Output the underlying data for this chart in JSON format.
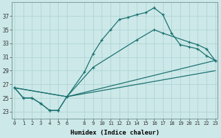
{
  "xlabel": "Humidex (Indice chaleur)",
  "bg_color": "#cce8e8",
  "grid_color": "#b0d4d4",
  "line_color": "#1a7070",
  "xlim": [
    -0.3,
    23.3
  ],
  "ylim": [
    22.0,
    39.0
  ],
  "xticks": [
    0,
    1,
    2,
    3,
    4,
    5,
    6,
    8,
    9,
    10,
    11,
    12,
    13,
    14,
    15,
    16,
    17,
    18,
    19,
    20,
    21,
    22,
    23
  ],
  "yticks": [
    23,
    25,
    27,
    29,
    31,
    33,
    35,
    37
  ],
  "line1_x": [
    0,
    1,
    2,
    3,
    4,
    5,
    6,
    8,
    9,
    10,
    11,
    12,
    13,
    14,
    15,
    16,
    17,
    18,
    19,
    20,
    21,
    22,
    23
  ],
  "line1_y": [
    26.5,
    25.0,
    25.0,
    24.2,
    23.2,
    23.2,
    25.2,
    28.8,
    31.5,
    33.5,
    35.0,
    36.5,
    36.8,
    37.2,
    37.5,
    38.2,
    37.2,
    34.5,
    32.8,
    32.5,
    32.2,
    31.2,
    30.5
  ],
  "line2_x": [
    0,
    1,
    2,
    3,
    4,
    5,
    6,
    9,
    14,
    16,
    17,
    20,
    21,
    22,
    23
  ],
  "line2_y": [
    26.5,
    25.0,
    25.0,
    24.2,
    23.2,
    23.2,
    25.2,
    29.5,
    33.5,
    35.0,
    34.5,
    33.2,
    32.8,
    32.2,
    30.5
  ],
  "line3_x": [
    0,
    6,
    23
  ],
  "line3_y": [
    26.5,
    25.2,
    30.5
  ],
  "line4_x": [
    0,
    6,
    23
  ],
  "line4_y": [
    26.5,
    25.2,
    29.0
  ]
}
